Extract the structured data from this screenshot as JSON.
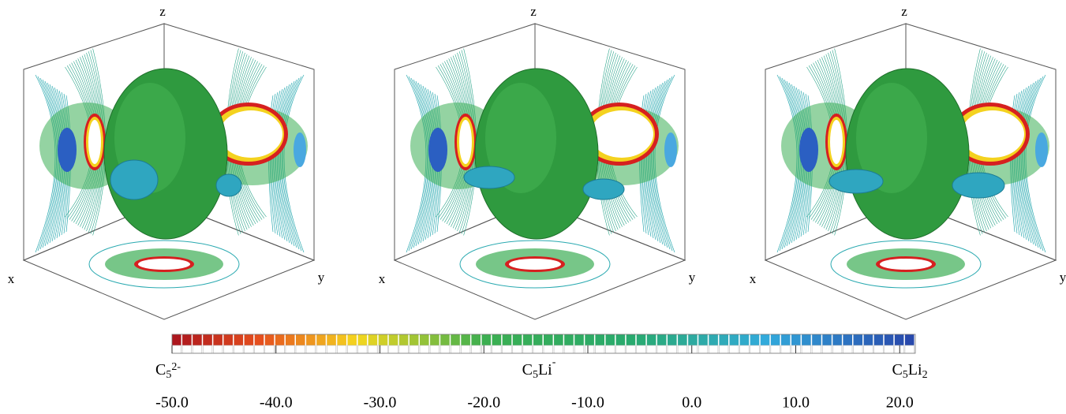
{
  "panels": [
    {
      "title": [
        {
          "text": "C"
        },
        {
          "sub": "5"
        },
        {
          "sup": "2-"
        }
      ],
      "axes": {
        "x": "x",
        "y": "y",
        "z": "z"
      }
    },
    {
      "title": [
        {
          "text": "C"
        },
        {
          "sub": "5"
        },
        {
          "text": "Li"
        },
        {
          "sup": "-"
        }
      ],
      "axes": {
        "x": "x",
        "y": "y",
        "z": "z"
      }
    },
    {
      "title": [
        {
          "text": "C"
        },
        {
          "sub": "5"
        },
        {
          "text": "Li"
        },
        {
          "sub": "2"
        }
      ],
      "axes": {
        "x": "x",
        "y": "y",
        "z": "z"
      }
    }
  ],
  "colorbar": {
    "lim": [
      -50,
      21.5
    ],
    "ticks": [
      {
        "value": -50,
        "label": "-50.0"
      },
      {
        "value": -40,
        "label": "-40.0"
      },
      {
        "value": -30,
        "label": "-30.0"
      },
      {
        "value": -20,
        "label": "-20.0"
      },
      {
        "value": -10,
        "label": "-10.0"
      },
      {
        "value": 0,
        "label": "0.0"
      },
      {
        "value": 10,
        "label": "10.0"
      },
      {
        "value": 20,
        "label": "20.0"
      }
    ]
  }
}
